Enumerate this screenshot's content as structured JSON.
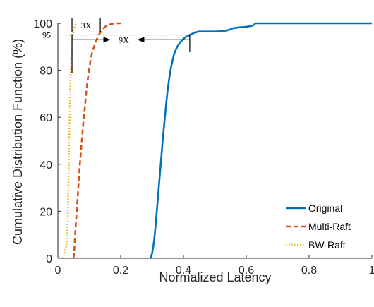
{
  "chart_data": {
    "type": "line",
    "xlabel": "Normalized Latency",
    "ylabel": "Cumulative Distribution Function (%)",
    "xlim": [
      0,
      1
    ],
    "ylim": [
      0,
      100
    ],
    "xticks": [
      0,
      0.2,
      0.4,
      0.6,
      0.8,
      1
    ],
    "xtick_labels": [
      "0",
      "0.2",
      "0.4",
      "0.6",
      "0.8",
      "1"
    ],
    "yticks": [
      0,
      20,
      40,
      60,
      80,
      100
    ],
    "ytick_labels": [
      "0",
      "20",
      "40",
      "60",
      "80",
      "100"
    ],
    "grid": false,
    "legend_position": "bottom-right",
    "series": [
      {
        "name": "Original",
        "color": "#0072BD",
        "dash": "solid",
        "points": [
          [
            0.295,
            0
          ],
          [
            0.3,
            2
          ],
          [
            0.305,
            6
          ],
          [
            0.31,
            12
          ],
          [
            0.315,
            20
          ],
          [
            0.32,
            28
          ],
          [
            0.325,
            36
          ],
          [
            0.33,
            44
          ],
          [
            0.335,
            52
          ],
          [
            0.34,
            59
          ],
          [
            0.345,
            66
          ],
          [
            0.35,
            72
          ],
          [
            0.355,
            77
          ],
          [
            0.36,
            81
          ],
          [
            0.365,
            84
          ],
          [
            0.37,
            87
          ],
          [
            0.38,
            90
          ],
          [
            0.39,
            92
          ],
          [
            0.405,
            94
          ],
          [
            0.42,
            95
          ],
          [
            0.435,
            96
          ],
          [
            0.45,
            96.5
          ],
          [
            0.5,
            96.5
          ],
          [
            0.53,
            96.7
          ],
          [
            0.545,
            97.2
          ],
          [
            0.56,
            98
          ],
          [
            0.58,
            98.3
          ],
          [
            0.6,
            98.5
          ],
          [
            0.62,
            99
          ],
          [
            0.63,
            100
          ],
          [
            1.0,
            100
          ]
        ]
      },
      {
        "name": "Multi-Raft",
        "color": "#D95319",
        "dash": "dashed",
        "points": [
          [
            0.05,
            0
          ],
          [
            0.052,
            3
          ],
          [
            0.055,
            10
          ],
          [
            0.06,
            20
          ],
          [
            0.065,
            30
          ],
          [
            0.07,
            40
          ],
          [
            0.075,
            48
          ],
          [
            0.08,
            56
          ],
          [
            0.085,
            63
          ],
          [
            0.09,
            70
          ],
          [
            0.095,
            76
          ],
          [
            0.1,
            81
          ],
          [
            0.105,
            85
          ],
          [
            0.11,
            88
          ],
          [
            0.12,
            92
          ],
          [
            0.13,
            95
          ],
          [
            0.14,
            97
          ],
          [
            0.15,
            98.5
          ],
          [
            0.16,
            99.3
          ],
          [
            0.18,
            100
          ],
          [
            0.2,
            100
          ]
        ]
      },
      {
        "name": "BW-Raft",
        "color": "#EDB120",
        "dash": "dotted",
        "points": [
          [
            0.015,
            0
          ],
          [
            0.02,
            2
          ],
          [
            0.025,
            4
          ],
          [
            0.028,
            6
          ],
          [
            0.03,
            10
          ],
          [
            0.032,
            20
          ],
          [
            0.034,
            35
          ],
          [
            0.036,
            50
          ],
          [
            0.038,
            65
          ],
          [
            0.04,
            75
          ],
          [
            0.042,
            83
          ],
          [
            0.045,
            90
          ],
          [
            0.048,
            95
          ],
          [
            0.052,
            98
          ],
          [
            0.058,
            100
          ]
        ]
      }
    ],
    "annotations": [
      {
        "text": "95",
        "kind": "reference-level",
        "y": 95
      },
      {
        "text": "3X",
        "kind": "span-arrow",
        "x_start": 0.045,
        "x_end": 0.135,
        "y": 98.5
      },
      {
        "text": "9X",
        "kind": "span-arrow",
        "x_start": 0.045,
        "x_end": 0.42,
        "y": 93
      }
    ]
  }
}
